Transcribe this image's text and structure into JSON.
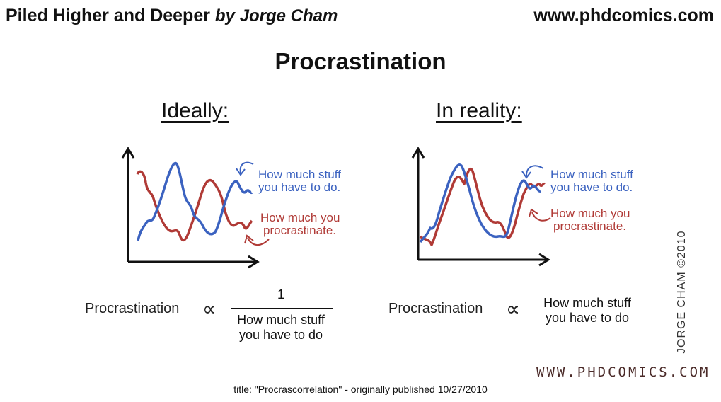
{
  "header": {
    "title": "Piled Higher and Deeper",
    "byline": "by Jorge Cham",
    "url": "www.phdcomics.com"
  },
  "comic": {
    "heading": "Procrastination",
    "panels": [
      {
        "heading": "Ideally:",
        "blue_label": [
          "How much stuff",
          "you have to do."
        ],
        "red_label": [
          "How much you",
          "procrastinate."
        ],
        "formula_lhs": "Procrastination",
        "formula_symbol": "∝",
        "formula_numerator": "1",
        "formula_denominator": "How much stuff you have to do"
      },
      {
        "heading": "In reality:",
        "blue_label": [
          "How much stuff",
          "you have to do."
        ],
        "red_label": [
          "How much you",
          "procrastinate."
        ],
        "formula_lhs": "Procrastination",
        "formula_symbol": "∝",
        "formula_rhs": "How much stuff you have to do"
      }
    ],
    "signature": "JORGE CHAM ©2010",
    "watermark": "WWW.PHDCOMICS.COM"
  },
  "caption": "title: \"Procrascorrelation\" - originally published 10/27/2010",
  "colors": {
    "blue": "#3b62c0",
    "red": "#b03a36",
    "text": "#111111"
  }
}
